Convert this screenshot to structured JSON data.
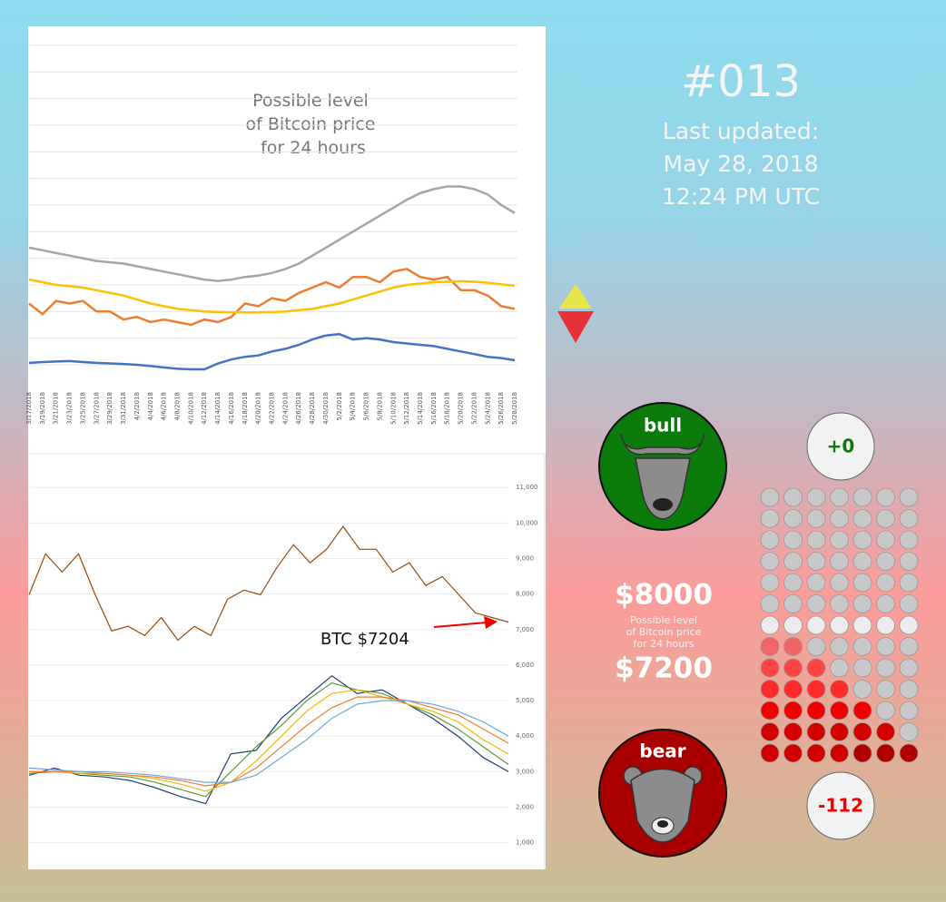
{
  "chart_data": [
    {
      "type": "line",
      "title": [
        "Possible level",
        "of Bitcoin price",
        "for 24 hours"
      ],
      "categories": [
        "3/17/2018",
        "3/19/2018",
        "3/21/2018",
        "3/23/2018",
        "3/25/2018",
        "3/27/2018",
        "3/29/2018",
        "3/31/2018",
        "4/2/2018",
        "4/4/2018",
        "4/6/2018",
        "4/8/2018",
        "4/10/2018",
        "4/12/2018",
        "4/14/2018",
        "4/16/2018",
        "4/18/2018",
        "4/20/2018",
        "4/22/2018",
        "4/24/2018",
        "4/26/2018",
        "4/28/2018",
        "4/30/2018",
        "5/2/2018",
        "5/4/2018",
        "5/6/2018",
        "5/8/2018",
        "5/10/2018",
        "5/12/2018",
        "5/14/2018",
        "5/16/2018",
        "5/18/2018",
        "5/20/2018",
        "5/22/2018",
        "5/24/2018",
        "5/26/2018",
        "5/28/2018"
      ],
      "ylim": [
        -1,
        12
      ],
      "series": [
        {
          "color": "#a5a5a5",
          "values": [
            4.4,
            4.3,
            4.2,
            4.1,
            4.0,
            3.9,
            3.85,
            3.8,
            3.7,
            3.6,
            3.5,
            3.4,
            3.3,
            3.2,
            3.15,
            3.2,
            3.3,
            3.35,
            3.45,
            3.6,
            3.8,
            4.1,
            4.4,
            4.7,
            5.0,
            5.3,
            5.6,
            5.9,
            6.2,
            6.45,
            6.6,
            6.7,
            6.7,
            6.6,
            6.4,
            6.0,
            5.7
          ]
        },
        {
          "color": "#ed7d31",
          "values": [
            2.3,
            1.9,
            2.4,
            2.3,
            2.4,
            2.0,
            2.0,
            1.7,
            1.8,
            1.6,
            1.7,
            1.6,
            1.5,
            1.7,
            1.6,
            1.8,
            2.3,
            2.2,
            2.5,
            2.4,
            2.7,
            2.9,
            3.1,
            2.9,
            3.3,
            3.3,
            3.1,
            3.5,
            3.6,
            3.3,
            3.2,
            3.3,
            2.8,
            2.8,
            2.6,
            2.2,
            2.1
          ]
        },
        {
          "color": "#ffc000",
          "values": [
            3.2,
            3.1,
            3.0,
            2.95,
            2.9,
            2.8,
            2.7,
            2.6,
            2.45,
            2.3,
            2.2,
            2.1,
            2.05,
            2.0,
            1.98,
            1.97,
            1.97,
            1.97,
            1.98,
            2.0,
            2.05,
            2.1,
            2.2,
            2.3,
            2.45,
            2.6,
            2.75,
            2.9,
            3.0,
            3.05,
            3.1,
            3.12,
            3.14,
            3.12,
            3.08,
            3.02,
            2.97
          ]
        },
        {
          "color": "#4472c4",
          "values": [
            0.07,
            0.1,
            0.12,
            0.14,
            0.1,
            0.07,
            0.05,
            0.03,
            0,
            -0.05,
            -0.1,
            -0.15,
            -0.17,
            -0.17,
            0.05,
            0.2,
            0.3,
            0.35,
            0.5,
            0.6,
            0.75,
            0.95,
            1.1,
            1.15,
            0.95,
            1.0,
            0.95,
            0.85,
            0.8,
            0.75,
            0.7,
            0.6,
            0.5,
            0.4,
            0.3,
            0.25,
            0.17
          ]
        }
      ]
    },
    {
      "type": "line",
      "ylim": [
        250,
        11950
      ],
      "yticks": [
        {
          "value": 1000,
          "label": "1,000"
        },
        {
          "value": 2000,
          "label": "2,000"
        },
        {
          "value": 3000,
          "label": "3,000"
        },
        {
          "value": 4000,
          "label": "4,000"
        },
        {
          "value": 5000,
          "label": "5,000"
        },
        {
          "value": 6000,
          "label": "6,000"
        },
        {
          "value": 7000,
          "label": "7,000"
        },
        {
          "value": 8000,
          "label": "8,000"
        },
        {
          "value": 9000,
          "label": "9,000"
        },
        {
          "value": 10000,
          "label": "10,000"
        },
        {
          "value": 11000,
          "label": "11,000"
        }
      ],
      "grid": true,
      "annotation": "BTC $7204",
      "series": [
        {
          "color": "#9c4a0c",
          "values": [
            7980,
            9130,
            8620,
            9130,
            7980,
            6960,
            7090,
            6830,
            7340,
            6700,
            7090,
            6830,
            7850,
            8110,
            7980,
            8750,
            9390,
            8880,
            9260,
            9900,
            9260,
            9260,
            8620,
            8880,
            8240,
            8490,
            7980,
            7470,
            7340,
            7210
          ]
        }
      ]
    },
    {
      "type": "line",
      "ylim": [
        250,
        11950
      ],
      "series": [
        {
          "color": "#1f3f7a",
          "values": [
            2900,
            3100,
            2900,
            2850,
            2750,
            2550,
            2300,
            2100,
            3500,
            3600,
            4500,
            5100,
            5700,
            5200,
            5300,
            4900,
            4500,
            4000,
            3400,
            3000
          ]
        },
        {
          "color": "#5b9b3a",
          "values": [
            2950,
            3000,
            2950,
            2900,
            2850,
            2700,
            2500,
            2300,
            3000,
            3700,
            4300,
            5000,
            5500,
            5300,
            5200,
            4900,
            4600,
            4200,
            3700,
            3200
          ]
        },
        {
          "color": "#f2b705",
          "values": [
            3000,
            3000,
            2950,
            2950,
            2900,
            2800,
            2650,
            2450,
            2700,
            3300,
            4000,
            4700,
            5200,
            5300,
            5100,
            4900,
            4700,
            4400,
            3900,
            3500
          ]
        },
        {
          "color": "#ed7d31",
          "values": [
            3000,
            3000,
            3000,
            2950,
            2900,
            2850,
            2750,
            2600,
            2700,
            3100,
            3700,
            4300,
            4800,
            5100,
            5100,
            5000,
            4800,
            4600,
            4200,
            3800
          ]
        },
        {
          "color": "#6fa8dc",
          "values": [
            3100,
            3050,
            3000,
            3000,
            2950,
            2900,
            2800,
            2700,
            2700,
            2900,
            3400,
            3900,
            4500,
            4900,
            5000,
            5000,
            4900,
            4700,
            4400,
            4000
          ]
        }
      ]
    }
  ],
  "panel": {
    "number": "#013",
    "updated": [
      "Last updated:",
      "May 28, 2018",
      "12:24 PM UTC"
    ],
    "bull": "bull",
    "bear": "bear",
    "bull_score": "+0",
    "bear_score": "-112",
    "high": "$8000",
    "caption": [
      "Possible level",
      "of Bitcoin price",
      "for 24 hours"
    ],
    "low": "$7200"
  }
}
